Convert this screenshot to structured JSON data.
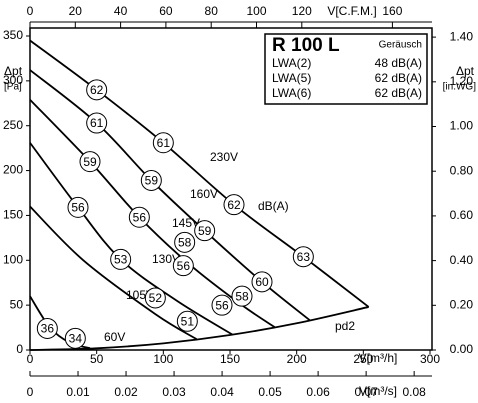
{
  "chart_data": {
    "type": "line",
    "x_label": "V[m³/h]",
    "xlim": [
      0,
      300
    ],
    "xticks": [
      0,
      50,
      100,
      150,
      200,
      250,
      300
    ],
    "y_label": "Δpt",
    "y_unit": "[Pa]",
    "ylim": [
      0,
      350
    ],
    "yticks": [
      0,
      50,
      100,
      150,
      200,
      250,
      300,
      350
    ],
    "y2_label": "Δpt",
    "y2_unit": "[in.WG]",
    "y2lim": [
      0,
      1.405
    ],
    "y2ticks": [
      {
        "value": 0,
        "label": "0.00"
      },
      {
        "value": 0.2,
        "label": "0.20"
      },
      {
        "value": 0.4,
        "label": "0.40"
      },
      {
        "value": 0.6,
        "label": "0.60"
      },
      {
        "value": 0.8,
        "label": "0.80"
      },
      {
        "value": 1.0,
        "label": "1.00"
      },
      {
        "value": 1.2,
        "label": "1.20"
      },
      {
        "value": 1.4,
        "label": "1.40"
      }
    ],
    "top_axis": {
      "label": "V[C.F.M.]",
      "lim": [
        0,
        176.6
      ],
      "ticks": [
        0,
        20,
        40,
        60,
        80,
        100,
        120,
        160
      ]
    },
    "bottom2_axis": {
      "label": "V[m³/s]",
      "lim": [
        0,
        0.0833
      ],
      "ticks": [
        0,
        0.01,
        0.02,
        0.03,
        0.04,
        0.05,
        0.06,
        0.07,
        0.08
      ]
    },
    "series": [
      {
        "name": "230V",
        "color": "#000000",
        "x": [
          0,
          50,
          100,
          153,
          205,
          254
        ],
        "values": [
          345,
          290,
          231,
          162,
          104,
          48
        ]
      },
      {
        "name": "160V",
        "color": "#000000",
        "x": [
          0,
          50,
          91,
          131,
          174,
          210
        ],
        "values": [
          312,
          253,
          189,
          133,
          76,
          33
        ]
      },
      {
        "name": "145V",
        "color": "#000000",
        "x": [
          0,
          45,
          82,
          120,
          159,
          184
        ],
        "values": [
          279,
          210,
          148,
          95,
          50,
          25
        ]
      },
      {
        "name": "130V",
        "color": "#000000",
        "x": [
          0,
          36,
          68,
          110,
          152
        ],
        "values": [
          231,
          159,
          101,
          55,
          17
        ]
      },
      {
        "name": "105V",
        "color": "#000000",
        "x": [
          0,
          40,
          94,
          125
        ],
        "values": [
          160,
          100,
          40,
          12
        ]
      },
      {
        "name": "60V",
        "color": "#000000",
        "x": [
          0,
          15,
          30,
          45
        ],
        "values": [
          60,
          25,
          8,
          2
        ]
      },
      {
        "name": "pd2",
        "color": "#000000",
        "x": [
          0,
          50,
          100,
          150,
          200,
          254
        ],
        "values": [
          0,
          1.9,
          7.4,
          16.7,
          29.8,
          48
        ]
      }
    ],
    "annotations": [
      {
        "x": 50,
        "y": 290,
        "label": 62
      },
      {
        "x": 50,
        "y": 253,
        "label": 61
      },
      {
        "x": 45,
        "y": 210,
        "label": 59
      },
      {
        "x": 36,
        "y": 159,
        "label": 56
      },
      {
        "x": 100,
        "y": 231,
        "label": 61
      },
      {
        "x": 91,
        "y": 189,
        "label": 59
      },
      {
        "x": 82,
        "y": 148,
        "label": 56
      },
      {
        "x": 68,
        "y": 101,
        "label": 53
      },
      {
        "x": 153,
        "y": 162,
        "label": 62
      },
      {
        "x": 131,
        "y": 133,
        "label": 59
      },
      {
        "x": 116,
        "y": 120,
        "label": 58
      },
      {
        "x": 115,
        "y": 94,
        "label": 56
      },
      {
        "x": 205,
        "y": 104,
        "label": 63
      },
      {
        "x": 174,
        "y": 76,
        "label": 60
      },
      {
        "x": 159,
        "y": 60,
        "label": 58
      },
      {
        "x": 144,
        "y": 50,
        "label": 56
      },
      {
        "x": 94,
        "y": 58,
        "label": 52
      },
      {
        "x": 118,
        "y": 32,
        "label": 51
      },
      {
        "x": 13,
        "y": 24,
        "label": 36
      },
      {
        "x": 34,
        "y": 13,
        "label": 34
      }
    ],
    "db_label": "dB(A)",
    "info": {
      "title": "R 100 L",
      "subtitle": "Geräusch",
      "rows": [
        [
          "LWA(2)",
          "48 dB(A)"
        ],
        [
          "LWA(5)",
          "62 dB(A)"
        ],
        [
          "LWA(6)",
          "62 dB(A)"
        ]
      ]
    }
  }
}
